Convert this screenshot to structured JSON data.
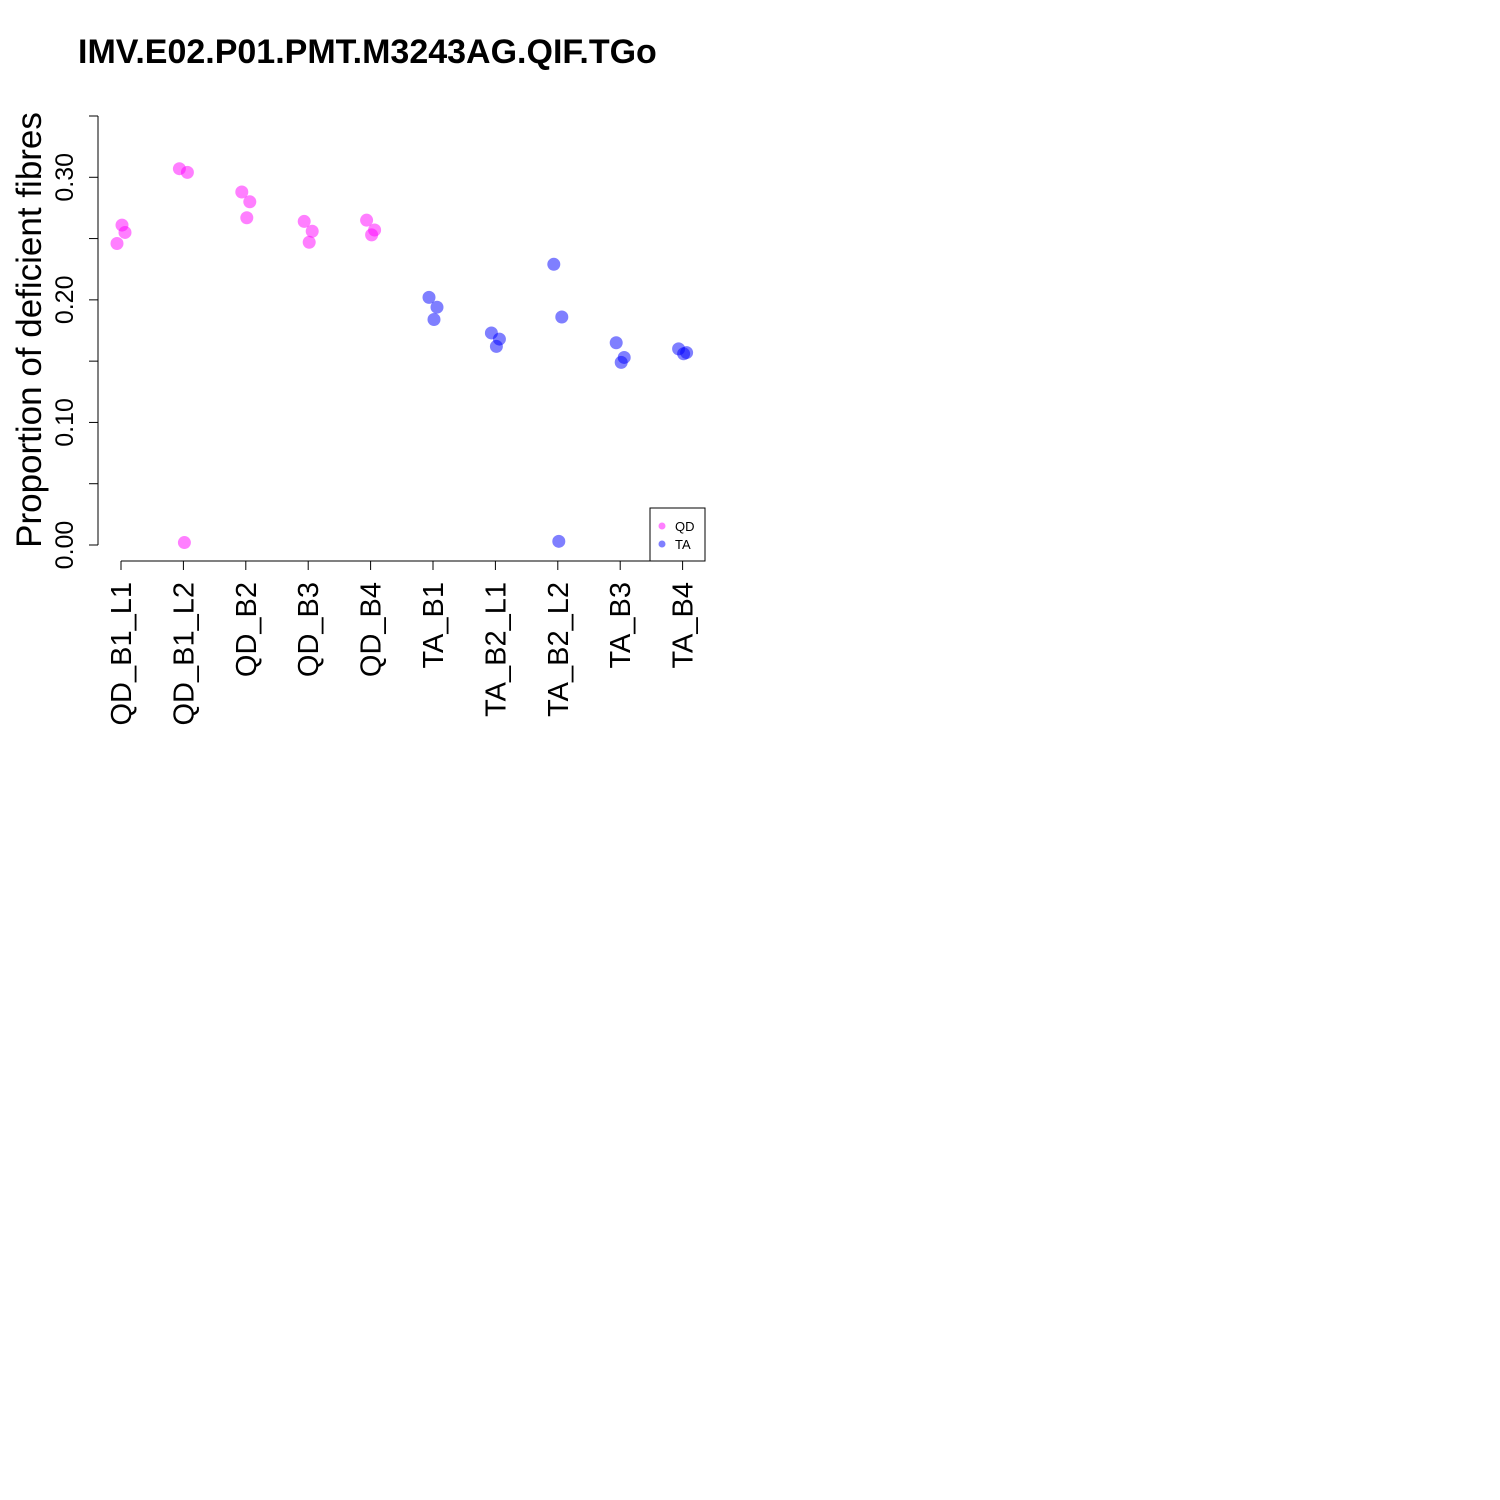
{
  "chart_data": {
    "type": "scatter",
    "title": "IMV.E02.P01.PMT.M3243AG.QIF.TGo",
    "xlabel": "",
    "ylabel": "Proportion of deficient fibres",
    "ylim": [
      0,
      0.35
    ],
    "yticks": [
      0.0,
      0.05,
      0.1,
      0.15,
      0.2,
      0.25,
      0.3,
      0.35
    ],
    "ytick_labels": [
      "0.00",
      "",
      "0.10",
      "",
      "0.20",
      "",
      "0.30",
      ""
    ],
    "categories": [
      "QD_B1_L1",
      "QD_B1_L2",
      "QD_B2",
      "QD_B3",
      "QD_B4",
      "TA_B1",
      "TA_B2_L1",
      "TA_B2_L2",
      "TA_B3",
      "TA_B4"
    ],
    "legend": {
      "position": "bottom-right"
    },
    "grid": false,
    "series": [
      {
        "name": "QD",
        "color": "#ff00ff",
        "points": [
          {
            "category": "QD_B1_L1",
            "y": 0.246
          },
          {
            "category": "QD_B1_L1",
            "y": 0.255
          },
          {
            "category": "QD_B1_L1",
            "y": 0.261
          },
          {
            "category": "QD_B1_L2",
            "y": 0.307
          },
          {
            "category": "QD_B1_L2",
            "y": 0.304
          },
          {
            "category": "QD_B1_L2",
            "y": 0.002
          },
          {
            "category": "QD_B2",
            "y": 0.288
          },
          {
            "category": "QD_B2",
            "y": 0.28
          },
          {
            "category": "QD_B2",
            "y": 0.267
          },
          {
            "category": "QD_B3",
            "y": 0.264
          },
          {
            "category": "QD_B3",
            "y": 0.256
          },
          {
            "category": "QD_B3",
            "y": 0.247
          },
          {
            "category": "QD_B4",
            "y": 0.265
          },
          {
            "category": "QD_B4",
            "y": 0.257
          },
          {
            "category": "QD_B4",
            "y": 0.253
          }
        ]
      },
      {
        "name": "TA",
        "color": "#0000ff",
        "points": [
          {
            "category": "TA_B1",
            "y": 0.202
          },
          {
            "category": "TA_B1",
            "y": 0.194
          },
          {
            "category": "TA_B1",
            "y": 0.184
          },
          {
            "category": "TA_B2_L1",
            "y": 0.173
          },
          {
            "category": "TA_B2_L1",
            "y": 0.168
          },
          {
            "category": "TA_B2_L1",
            "y": 0.162
          },
          {
            "category": "TA_B2_L2",
            "y": 0.229
          },
          {
            "category": "TA_B2_L2",
            "y": 0.186
          },
          {
            "category": "TA_B2_L2",
            "y": 0.003
          },
          {
            "category": "TA_B3",
            "y": 0.165
          },
          {
            "category": "TA_B3",
            "y": 0.153
          },
          {
            "category": "TA_B3",
            "y": 0.149
          },
          {
            "category": "TA_B4",
            "y": 0.16
          },
          {
            "category": "TA_B4",
            "y": 0.157
          },
          {
            "category": "TA_B4",
            "y": 0.156
          }
        ]
      }
    ]
  }
}
